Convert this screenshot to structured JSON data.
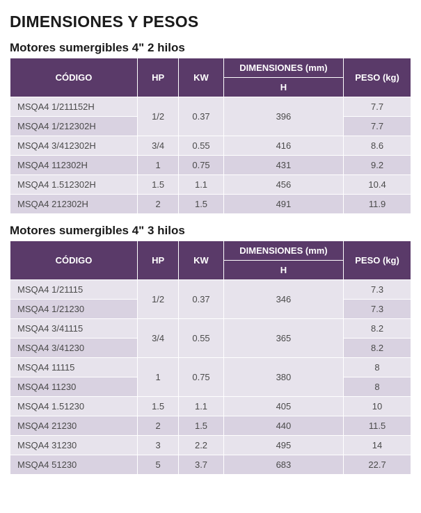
{
  "colors": {
    "header_bg": "#5a3a69",
    "header_text": "#ffffff",
    "row_alt_a": "#e7e3ec",
    "row_alt_b": "#d9d2e1",
    "text": "#4a4a4a",
    "border": "#ffffff",
    "title": "#1a1a1a"
  },
  "fonts": {
    "h1_size": 23,
    "h2_size": 17,
    "cell_size": 13
  },
  "page_title": "DIMENSIONES Y PESOS",
  "headers": {
    "codigo": "CÓDIGO",
    "hp": "HP",
    "kw": "KW",
    "dim": "DIMENSIONES (mm)",
    "h": "H",
    "peso": "PESO (kg)"
  },
  "tables": [
    {
      "title": "Motores sumergibles 4\" 2 hilos",
      "rows": [
        {
          "codigo": "MSQA4 1/211152H",
          "hp": "1/2",
          "kw": "0.37",
          "h": "396",
          "peso": "7.7",
          "span": 2
        },
        {
          "codigo": "MSQA4 1/212302H",
          "peso": "7.7"
        },
        {
          "codigo": "MSQA4 3/412302H",
          "hp": "3/4",
          "kw": "0.55",
          "h": "416",
          "peso": "8.6",
          "span": 1
        },
        {
          "codigo": "MSQA4 112302H",
          "hp": "1",
          "kw": "0.75",
          "h": "431",
          "peso": "9.2",
          "span": 1
        },
        {
          "codigo": "MSQA4 1.512302H",
          "hp": "1.5",
          "kw": "1.1",
          "h": "456",
          "peso": "10.4",
          "span": 1
        },
        {
          "codigo": "MSQA4 212302H",
          "hp": "2",
          "kw": "1.5",
          "h": "491",
          "peso": "11.9",
          "span": 1
        }
      ]
    },
    {
      "title": "Motores sumergibles 4\" 3 hilos",
      "rows": [
        {
          "codigo": "MSQA4 1/21115",
          "hp": "1/2",
          "kw": "0.37",
          "h": "346",
          "peso": "7.3",
          "span": 2
        },
        {
          "codigo": "MSQA4 1/21230",
          "peso": "7.3"
        },
        {
          "codigo": "MSQA4 3/41115",
          "hp": "3/4",
          "kw": "0.55",
          "h": "365",
          "peso": "8.2",
          "span": 2
        },
        {
          "codigo": "MSQA4 3/41230",
          "peso": "8.2"
        },
        {
          "codigo": "MSQA4 11115",
          "hp": "1",
          "kw": "0.75",
          "h": "380",
          "peso": "8",
          "span": 2
        },
        {
          "codigo": "MSQA4 11230",
          "peso": "8"
        },
        {
          "codigo": "MSQA4 1.51230",
          "hp": "1.5",
          "kw": "1.1",
          "h": "405",
          "peso": "10",
          "span": 1
        },
        {
          "codigo": "MSQA4 21230",
          "hp": "2",
          "kw": "1.5",
          "h": "440",
          "peso": "11.5",
          "span": 1
        },
        {
          "codigo": "MSQA4 31230",
          "hp": "3",
          "kw": "2.2",
          "h": "495",
          "peso": "14",
          "span": 1
        },
        {
          "codigo": "MSQA4 51230",
          "hp": "5",
          "kw": "3.7",
          "h": "683",
          "peso": "22.7",
          "span": 1
        }
      ]
    }
  ]
}
